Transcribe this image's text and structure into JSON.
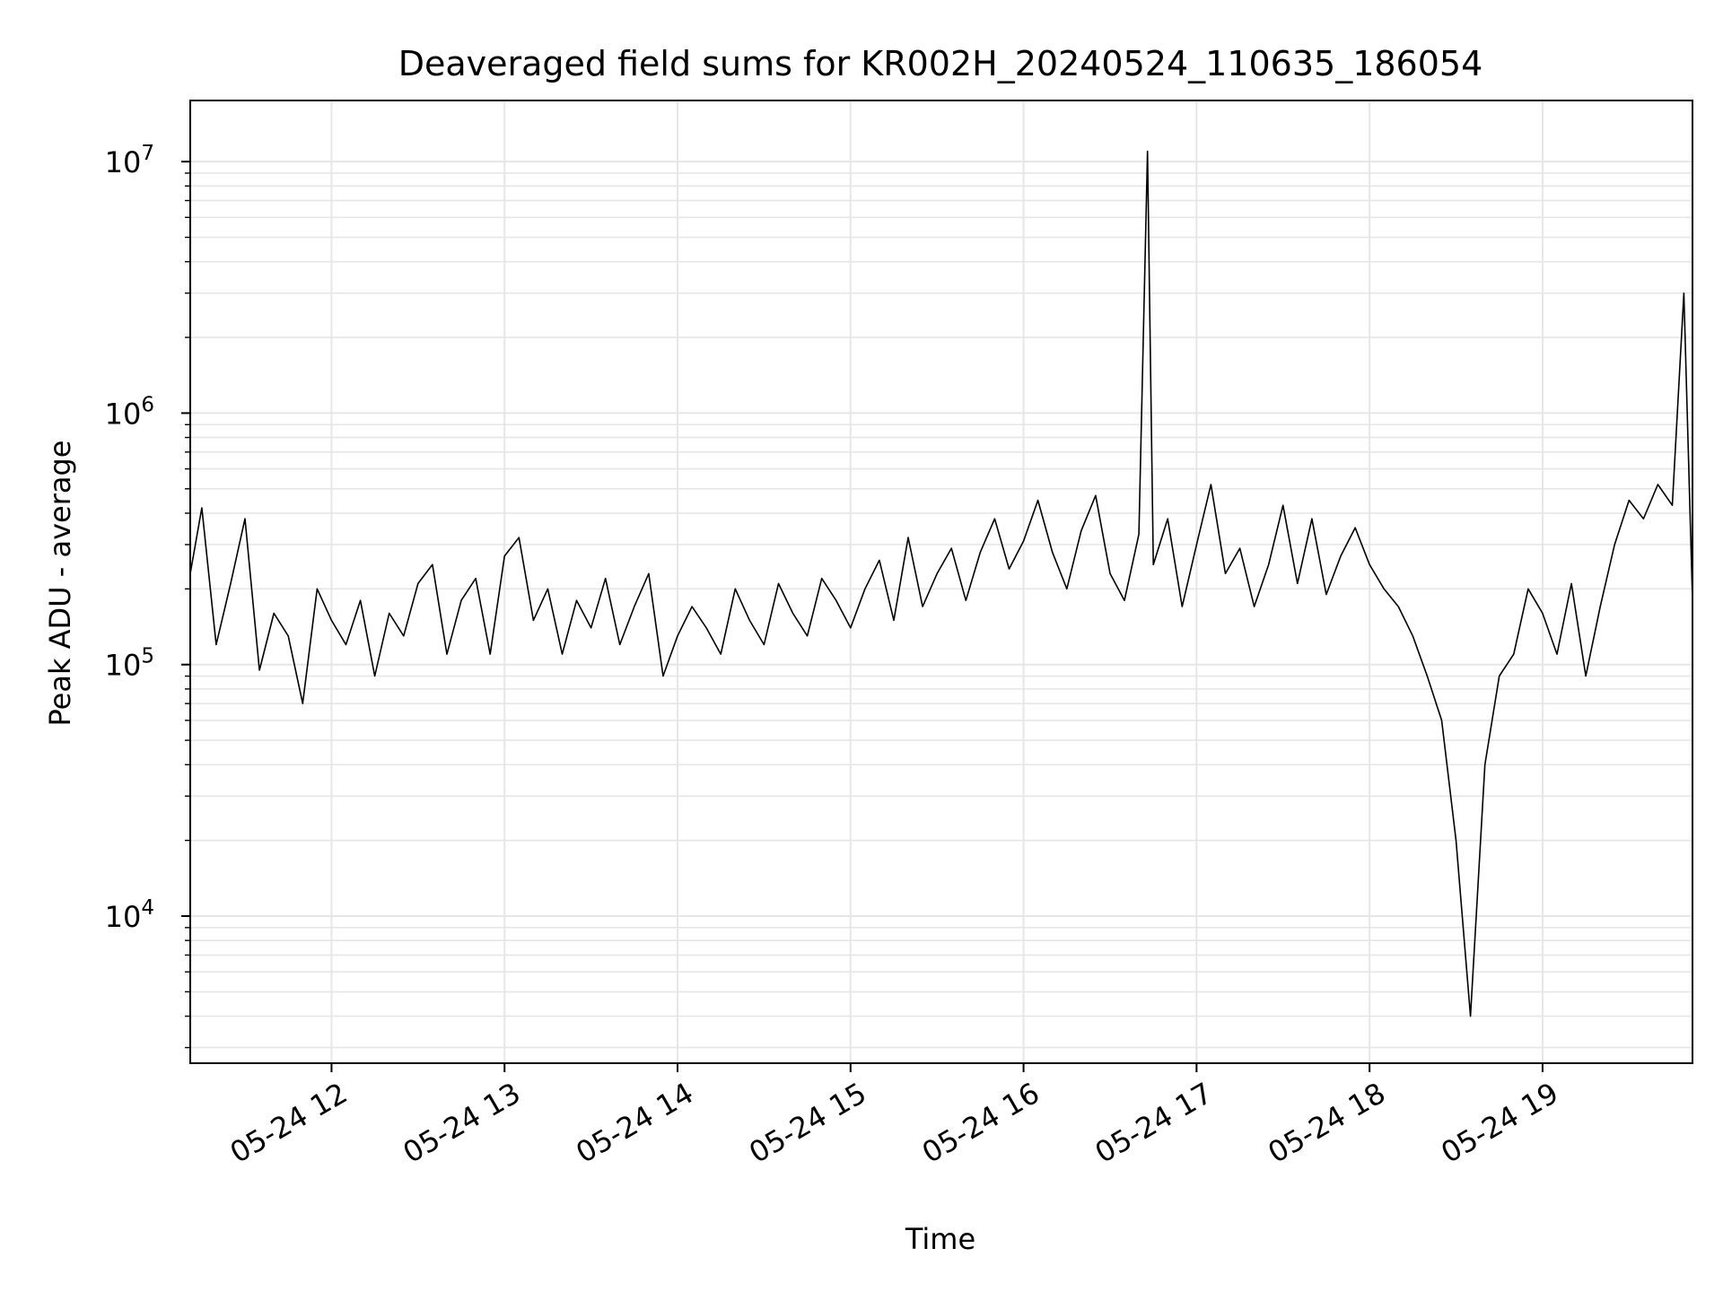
{
  "chart_data": {
    "type": "line",
    "title": "Deaveraged field sums for KR002H_20240524_110635_186054",
    "xlabel": "Time",
    "ylabel": "Peak ADU - average",
    "y_scale": "log",
    "ylim": [
      2600,
      17500000
    ],
    "xlim": [
      "2024-05-24 11:11",
      "2024-05-24 19:52"
    ],
    "x_ticks": [
      {
        "at": "2024-05-24 12:00",
        "label": "05-24 12"
      },
      {
        "at": "2024-05-24 13:00",
        "label": "05-24 13"
      },
      {
        "at": "2024-05-24 14:00",
        "label": "05-24 14"
      },
      {
        "at": "2024-05-24 15:00",
        "label": "05-24 15"
      },
      {
        "at": "2024-05-24 16:00",
        "label": "05-24 16"
      },
      {
        "at": "2024-05-24 17:00",
        "label": "05-24 17"
      },
      {
        "at": "2024-05-24 18:00",
        "label": "05-24 18"
      },
      {
        "at": "2024-05-24 19:00",
        "label": "05-24 19"
      }
    ],
    "y_ticks": [
      {
        "value": 10000,
        "base": "10",
        "exp": "4"
      },
      {
        "value": 100000,
        "base": "10",
        "exp": "5"
      },
      {
        "value": 1000000,
        "base": "10",
        "exp": "6"
      },
      {
        "value": 10000000,
        "base": "10",
        "exp": "7"
      }
    ],
    "grid": true,
    "line_color": "#000000",
    "grid_color": "#e6e6e6",
    "series": [
      {
        "x": [
          "2024-05-24 11:11",
          "2024-05-24 11:15",
          "2024-05-24 11:20",
          "2024-05-24 11:25",
          "2024-05-24 11:30",
          "2024-05-24 11:35",
          "2024-05-24 11:40",
          "2024-05-24 11:45",
          "2024-05-24 11:50",
          "2024-05-24 11:55",
          "2024-05-24 12:00",
          "2024-05-24 12:05",
          "2024-05-24 12:10",
          "2024-05-24 12:15",
          "2024-05-24 12:20",
          "2024-05-24 12:25",
          "2024-05-24 12:30",
          "2024-05-24 12:35",
          "2024-05-24 12:40",
          "2024-05-24 12:45",
          "2024-05-24 12:50",
          "2024-05-24 12:55",
          "2024-05-24 13:00",
          "2024-05-24 13:05",
          "2024-05-24 13:10",
          "2024-05-24 13:15",
          "2024-05-24 13:20",
          "2024-05-24 13:25",
          "2024-05-24 13:30",
          "2024-05-24 13:35",
          "2024-05-24 13:40",
          "2024-05-24 13:45",
          "2024-05-24 13:50",
          "2024-05-24 13:55",
          "2024-05-24 14:00",
          "2024-05-24 14:05",
          "2024-05-24 14:10",
          "2024-05-24 14:15",
          "2024-05-24 14:20",
          "2024-05-24 14:25",
          "2024-05-24 14:30",
          "2024-05-24 14:35",
          "2024-05-24 14:40",
          "2024-05-24 14:45",
          "2024-05-24 14:50",
          "2024-05-24 14:55",
          "2024-05-24 15:00",
          "2024-05-24 15:05",
          "2024-05-24 15:10",
          "2024-05-24 15:15",
          "2024-05-24 15:20",
          "2024-05-24 15:25",
          "2024-05-24 15:30",
          "2024-05-24 15:35",
          "2024-05-24 15:40",
          "2024-05-24 15:45",
          "2024-05-24 15:50",
          "2024-05-24 15:55",
          "2024-05-24 16:00",
          "2024-05-24 16:05",
          "2024-05-24 16:10",
          "2024-05-24 16:15",
          "2024-05-24 16:20",
          "2024-05-24 16:25",
          "2024-05-24 16:30",
          "2024-05-24 16:35",
          "2024-05-24 16:40",
          "2024-05-24 16:43",
          "2024-05-24 16:45",
          "2024-05-24 16:50",
          "2024-05-24 16:55",
          "2024-05-24 17:00",
          "2024-05-24 17:05",
          "2024-05-24 17:10",
          "2024-05-24 17:15",
          "2024-05-24 17:20",
          "2024-05-24 17:25",
          "2024-05-24 17:30",
          "2024-05-24 17:35",
          "2024-05-24 17:40",
          "2024-05-24 17:45",
          "2024-05-24 17:50",
          "2024-05-24 17:55",
          "2024-05-24 18:00",
          "2024-05-24 18:05",
          "2024-05-24 18:10",
          "2024-05-24 18:15",
          "2024-05-24 18:20",
          "2024-05-24 18:25",
          "2024-05-24 18:30",
          "2024-05-24 18:35",
          "2024-05-24 18:40",
          "2024-05-24 18:45",
          "2024-05-24 18:50",
          "2024-05-24 18:55",
          "2024-05-24 19:00",
          "2024-05-24 19:05",
          "2024-05-24 19:10",
          "2024-05-24 19:15",
          "2024-05-24 19:20",
          "2024-05-24 19:25",
          "2024-05-24 19:30",
          "2024-05-24 19:35",
          "2024-05-24 19:40",
          "2024-05-24 19:45",
          "2024-05-24 19:49",
          "2024-05-24 19:52"
        ],
        "y": [
          230000,
          420000,
          120000,
          210000,
          380000,
          95000,
          160000,
          130000,
          70000,
          200000,
          150000,
          120000,
          180000,
          90000,
          160000,
          130000,
          210000,
          250000,
          110000,
          180000,
          220000,
          110000,
          270000,
          320000,
          150000,
          200000,
          110000,
          180000,
          140000,
          220000,
          120000,
          170000,
          230000,
          90000,
          130000,
          170000,
          140000,
          110000,
          200000,
          150000,
          120000,
          210000,
          160000,
          130000,
          220000,
          180000,
          140000,
          200000,
          260000,
          150000,
          320000,
          170000,
          230000,
          290000,
          180000,
          280000,
          380000,
          240000,
          310000,
          450000,
          280000,
          200000,
          340000,
          470000,
          230000,
          180000,
          330000,
          11000000,
          250000,
          380000,
          170000,
          300000,
          520000,
          230000,
          290000,
          170000,
          250000,
          430000,
          210000,
          380000,
          190000,
          270000,
          350000,
          250000,
          200000,
          170000,
          130000,
          90000,
          60000,
          20000,
          4000,
          40000,
          90000,
          110000,
          200000,
          160000,
          110000,
          210000,
          90000,
          170000,
          300000,
          450000,
          380000,
          520000,
          430000,
          3000000,
          180000
        ]
      }
    ]
  }
}
